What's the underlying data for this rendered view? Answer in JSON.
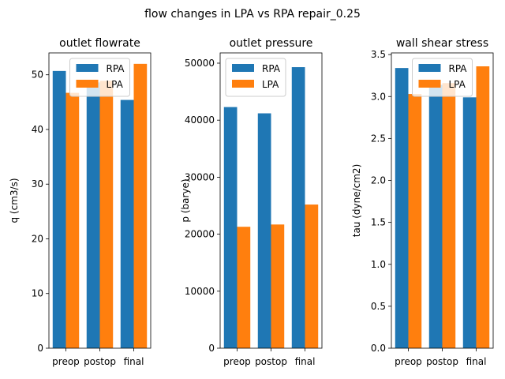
{
  "chart_data": [
    {
      "type": "bar",
      "title": "outlet flowrate",
      "ylabel": "q (cm3/s)",
      "categories": [
        "preop",
        "postop",
        "final"
      ],
      "ylim": [
        0,
        54
      ],
      "yticks": [
        0,
        10,
        20,
        30,
        40,
        50
      ],
      "legend": "upper center",
      "series": [
        {
          "name": "RPA",
          "values": [
            50.7,
            48.6,
            45.4
          ]
        },
        {
          "name": "LPA",
          "values": [
            46.7,
            48.9,
            52.0
          ]
        }
      ]
    },
    {
      "type": "bar",
      "title": "outlet pressure",
      "ylabel": "p (barye)",
      "categories": [
        "preop",
        "postop",
        "final"
      ],
      "ylim": [
        0,
        51800
      ],
      "yticks": [
        0,
        10000,
        20000,
        30000,
        40000,
        50000
      ],
      "legend": "upper left",
      "series": [
        {
          "name": "RPA",
          "values": [
            42300,
            41200,
            49300
          ]
        },
        {
          "name": "LPA",
          "values": [
            21300,
            21700,
            25200
          ]
        }
      ]
    },
    {
      "type": "bar",
      "title": "wall shear stress",
      "ylabel": "tau (dyne/cm2)",
      "categories": [
        "preop",
        "postop",
        "final"
      ],
      "ylim": [
        0,
        3.52
      ],
      "yticks": [
        "0.0",
        "0.5",
        "1.0",
        "1.5",
        "2.0",
        "2.5",
        "3.0",
        "3.5"
      ],
      "legend": "upper center",
      "series": [
        {
          "name": "RPA",
          "values": [
            3.34,
            3.14,
            2.99
          ]
        },
        {
          "name": "LPA",
          "values": [
            3.03,
            3.16,
            3.36
          ]
        }
      ]
    }
  ],
  "figure": {
    "suptitle": "flow changes in LPA vs RPA repair_0.25",
    "colors": {
      "RPA": "#1f77b4",
      "LPA": "#ff7f0e"
    }
  }
}
